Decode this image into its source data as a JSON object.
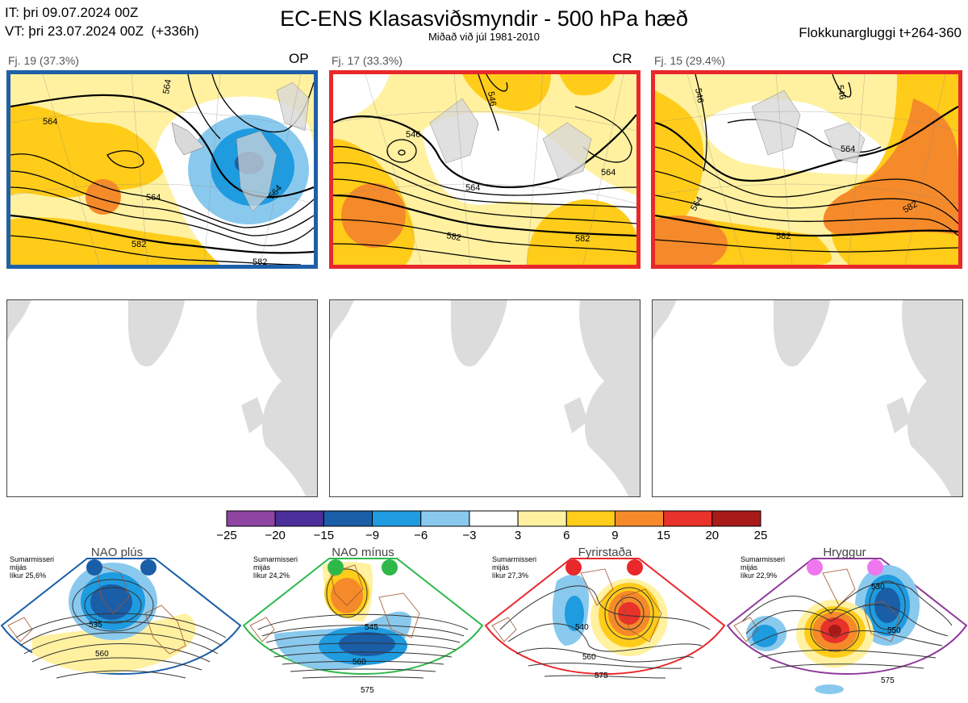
{
  "header": {
    "init_line": "IT: þri 09.07.2024 00Z",
    "valid_line": "VT: þri 23.07.2024 00Z  (+336h)",
    "title": "EC-ENS Klasasviðsmyndir - 500 hPa hæð",
    "subtitle": "Miðað við júl 1981-2010",
    "window": "Flokkunargluggi t+264-360"
  },
  "clusters": [
    {
      "label": "Fj. 19 (37.3%)",
      "tag": "OP",
      "frame_color": "#1f5fa8",
      "contour_labels": [
        "564",
        "564",
        "564",
        "564",
        "582",
        "582"
      ]
    },
    {
      "label": "Fj. 17 (33.3%)",
      "tag": "CR",
      "frame_color": "#e8282b",
      "contour_labels": [
        "546",
        "546",
        "564",
        "564",
        "582",
        "582"
      ]
    },
    {
      "label": "Fj. 15 (29.4%)",
      "tag": "",
      "frame_color": "#e8282b",
      "contour_labels": [
        "546",
        "546",
        "564",
        "564",
        "582",
        "582"
      ]
    }
  ],
  "colorbar": {
    "ticks": [
      "−25",
      "−20",
      "−15",
      "−9",
      "−6",
      "−3",
      "3",
      "6",
      "9",
      "15",
      "20",
      "25"
    ],
    "colors": [
      "#8e44a0",
      "#4b2e9a",
      "#1a5ea8",
      "#1f9be0",
      "#8ac9ee",
      "#ffffff",
      "#fff1a0",
      "#ffcc1a",
      "#f58a2a",
      "#e8322a",
      "#a81a1a"
    ]
  },
  "regimes": [
    {
      "name": "NAO plús",
      "note": [
        "Sumarmisseri",
        "mijás",
        "líkur 25,6%"
      ],
      "color": "#1a5ea8",
      "frame_color": "#1a5ea8",
      "labels": [
        "535",
        "560"
      ]
    },
    {
      "name": "NAO mínus",
      "note": [
        "Sumarmisseri",
        "mijás",
        "líkur 24,2%"
      ],
      "color": "#2eb84a",
      "frame_color": "#2eb84a",
      "labels": [
        "545",
        "560",
        "575"
      ]
    },
    {
      "name": "Fyrirstaða",
      "note": [
        "Sumarmisseri",
        "mijás",
        "líkur 27,3%"
      ],
      "color": "#e8282b",
      "frame_color": "#e8282b",
      "labels": [
        "540",
        "560",
        "575"
      ]
    },
    {
      "name": "Hryggur",
      "note": [
        "Sumarmisseri",
        "mijás",
        "líkur 22,9%"
      ],
      "color": "#ee77ee",
      "frame_color": "#8e3a9a",
      "labels": [
        "530",
        "550",
        "575"
      ]
    }
  ],
  "chart_data": {
    "type": "heatmap",
    "title": "EC-ENS Klasasviðsmyndir - 500 hPa hæð",
    "legend_boundaries": [
      -25,
      -20,
      -15,
      -9,
      -6,
      -3,
      3,
      6,
      9,
      15,
      20,
      25
    ],
    "series": [
      {
        "name": "Fj. 19 (37.3%)",
        "contour_levels": [
          564,
          582
        ]
      },
      {
        "name": "Fj. 17 (33.3%)",
        "contour_levels": [
          546,
          564,
          582
        ]
      },
      {
        "name": "Fj. 15 (29.4%)",
        "contour_levels": [
          546,
          564,
          582
        ]
      }
    ]
  }
}
